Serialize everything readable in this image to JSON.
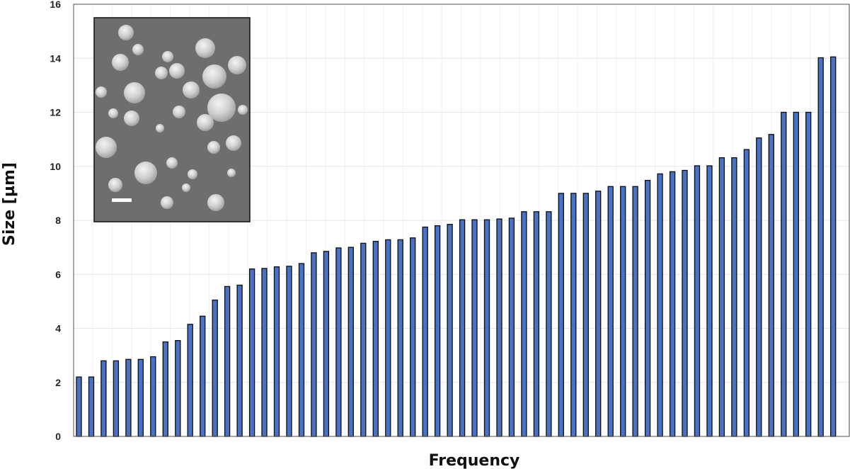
{
  "chart_data": {
    "type": "bar",
    "xlabel": "Frequency",
    "ylabel": "Size [µm]",
    "ylim": [
      0,
      16
    ],
    "yticks": [
      0,
      2,
      4,
      6,
      8,
      10,
      12,
      14,
      16
    ],
    "grid": true,
    "legend": "none",
    "values": [
      2.2,
      2.2,
      2.8,
      2.8,
      2.85,
      2.85,
      2.95,
      3.5,
      3.55,
      4.15,
      4.45,
      5.05,
      5.55,
      5.6,
      6.2,
      6.22,
      6.28,
      6.3,
      6.4,
      6.8,
      6.85,
      6.98,
      7.0,
      7.15,
      7.22,
      7.28,
      7.28,
      7.35,
      7.75,
      7.8,
      7.85,
      8.02,
      8.02,
      8.02,
      8.05,
      8.08,
      8.32,
      8.32,
      8.32,
      9.0,
      9.0,
      9.0,
      9.08,
      9.25,
      9.25,
      9.25,
      9.48,
      9.72,
      9.8,
      9.85,
      10.02,
      10.02,
      10.32,
      10.32,
      10.62,
      11.05,
      11.18,
      12.0,
      12.0,
      12.0,
      14.02,
      14.05
    ],
    "colors": {
      "bar": "#4a72c4",
      "bar_edge": "#0c0c0c"
    },
    "inset": {
      "content": "SEM micrograph of particles with white scale bar",
      "position": "top-left"
    }
  }
}
